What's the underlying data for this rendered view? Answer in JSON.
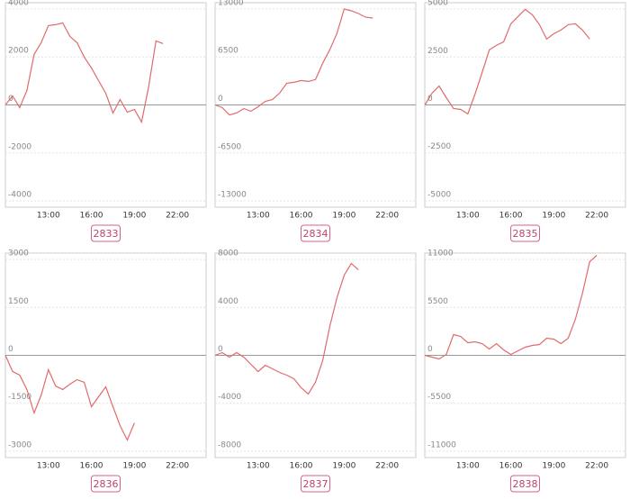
{
  "chart_data": [
    {
      "type": "line",
      "title": "2833",
      "color": "#e06b6b",
      "grid": true,
      "x": [
        "10:00",
        "10:30",
        "11:00",
        "11:30",
        "12:00",
        "12:30",
        "13:00",
        "13:30",
        "14:00",
        "14:30",
        "15:00",
        "15:30",
        "16:00",
        "16:30",
        "17:00",
        "17:30",
        "18:00",
        "18:30",
        "19:00",
        "19:30",
        "20:00",
        "20:30",
        "21:00"
      ],
      "values": [
        0,
        376,
        -113,
        600,
        2105,
        2594,
        3308,
        3346,
        3421,
        2857,
        2594,
        1992,
        1541,
        1015,
        489,
        -338,
        226,
        -301,
        -188,
        -714,
        789,
        2669,
        2556
      ],
      "xlim": [
        "10:00",
        "24:00"
      ],
      "xticks": [
        "13:00",
        "16:00",
        "19:00",
        "22:00"
      ],
      "ylim": [
        -4260,
        4260
      ],
      "yticks": [
        -4000,
        -2000,
        0,
        2000,
        4000
      ]
    },
    {
      "type": "line",
      "title": "2834",
      "color": "#e06b6b",
      "grid": true,
      "x": [
        "10:00",
        "10:30",
        "11:00",
        "11:30",
        "12:00",
        "12:30",
        "13:00",
        "13:30",
        "14:00",
        "14:30",
        "15:00",
        "15:30",
        "16:00",
        "16:30",
        "17:00",
        "17:30",
        "18:00",
        "18:30",
        "19:00",
        "19:30",
        "20:00",
        "20:30",
        "21:00"
      ],
      "values": [
        0,
        -368,
        -1349,
        -1103,
        -490,
        -858,
        -245,
        490,
        736,
        1594,
        2943,
        3065,
        3310,
        3188,
        3433,
        5640,
        7479,
        9686,
        13000,
        12750,
        12380,
        11890,
        11770
      ],
      "xlim": [
        "10:00",
        "24:00"
      ],
      "xticks": [
        "13:00",
        "16:00",
        "19:00",
        "22:00"
      ],
      "ylim": [
        -13850,
        13850
      ],
      "yticks": [
        -13000,
        -6500,
        0,
        6500,
        13000
      ]
    },
    {
      "type": "line",
      "title": "2835",
      "color": "#e06b6b",
      "grid": true,
      "x": [
        "10:00",
        "10:30",
        "11:00",
        "11:30",
        "12:00",
        "12:30",
        "13:00",
        "13:30",
        "14:00",
        "14:30",
        "15:00",
        "15:30",
        "16:00",
        "16:30",
        "17:00",
        "17:30",
        "18:00",
        "18:30",
        "19:00",
        "19:30",
        "20:00",
        "20:30",
        "21:00",
        "21:30"
      ],
      "values": [
        0,
        611,
        987,
        376,
        -188,
        -235,
        -470,
        564,
        1692,
        2867,
        3102,
        3290,
        4230,
        4606,
        4982,
        4700,
        4183,
        3431,
        3713,
        3901,
        4183,
        4230,
        3901,
        3431
      ],
      "xlim": [
        "10:00",
        "24:00"
      ],
      "xticks": [
        "13:00",
        "16:00",
        "19:00",
        "22:00"
      ],
      "ylim": [
        -5330,
        5330
      ],
      "yticks": [
        -5000,
        -2500,
        0,
        2500,
        5000
      ]
    },
    {
      "type": "line",
      "title": "2836",
      "color": "#e06b6b",
      "grid": true,
      "x": [
        "10:00",
        "10:30",
        "11:00",
        "11:30",
        "12:00",
        "12:30",
        "13:00",
        "13:30",
        "14:00",
        "14:30",
        "15:00",
        "15:30",
        "16:00",
        "16:30",
        "17:00",
        "17:30",
        "18:00",
        "18:30",
        "19:00"
      ],
      "values": [
        0,
        -508,
        -621,
        -1072,
        -1805,
        -1241,
        -451,
        -959,
        -1072,
        -902,
        -761,
        -846,
        -1607,
        -1297,
        -987,
        -1607,
        -2199,
        -2650,
        -2114
      ],
      "xlim": [
        "10:00",
        "24:00"
      ],
      "xticks": [
        "13:00",
        "16:00",
        "19:00",
        "22:00"
      ],
      "ylim": [
        -3200,
        3200
      ],
      "yticks": [
        -3000,
        -1500,
        0,
        1500,
        3000
      ]
    },
    {
      "type": "line",
      "title": "2837",
      "color": "#e06b6b",
      "grid": true,
      "x": [
        "10:00",
        "10:30",
        "11:00",
        "11:30",
        "12:00",
        "12:30",
        "13:00",
        "13:30",
        "14:00",
        "14:30",
        "15:00",
        "15:30",
        "16:00",
        "16:30",
        "17:00",
        "17:30",
        "18:00",
        "18:30",
        "19:00",
        "19:30",
        "20:00"
      ],
      "values": [
        0,
        225,
        -150,
        225,
        -150,
        -751,
        -1352,
        -826,
        -1127,
        -1427,
        -1652,
        -1953,
        -2704,
        -3229,
        -2253,
        -450,
        2403,
        4806,
        6683,
        7660,
        7135
      ],
      "xlim": [
        "10:00",
        "24:00"
      ],
      "xticks": [
        "13:00",
        "16:00",
        "19:00",
        "22:00"
      ],
      "ylim": [
        -8530,
        8530
      ],
      "yticks": [
        -8000,
        -4000,
        0,
        4000,
        8000
      ]
    },
    {
      "type": "line",
      "title": "2838",
      "color": "#e06b6b",
      "grid": true,
      "x": [
        "10:00",
        "10:30",
        "11:00",
        "11:30",
        "12:00",
        "12:30",
        "13:00",
        "13:30",
        "14:00",
        "14:30",
        "15:00",
        "15:30",
        "16:00",
        "16:30",
        "17:00",
        "17:30",
        "18:00",
        "18:30",
        "19:00",
        "19:30",
        "20:00",
        "20:30",
        "21:00",
        "21:30",
        "22:00"
      ],
      "values": [
        0,
        -207,
        -413,
        103,
        2376,
        2169,
        1446,
        1550,
        1343,
        723,
        1343,
        620,
        103,
        517,
        930,
        1136,
        1240,
        1963,
        1860,
        1343,
        1963,
        4132,
        7128,
        10743,
        11467
      ],
      "xlim": [
        "10:00",
        "24:00"
      ],
      "xticks": [
        "13:00",
        "16:00",
        "19:00",
        "22:00"
      ],
      "ylim": [
        -11730,
        11730
      ],
      "yticks": [
        -11000,
        -5500,
        0,
        5500,
        11000
      ]
    }
  ]
}
